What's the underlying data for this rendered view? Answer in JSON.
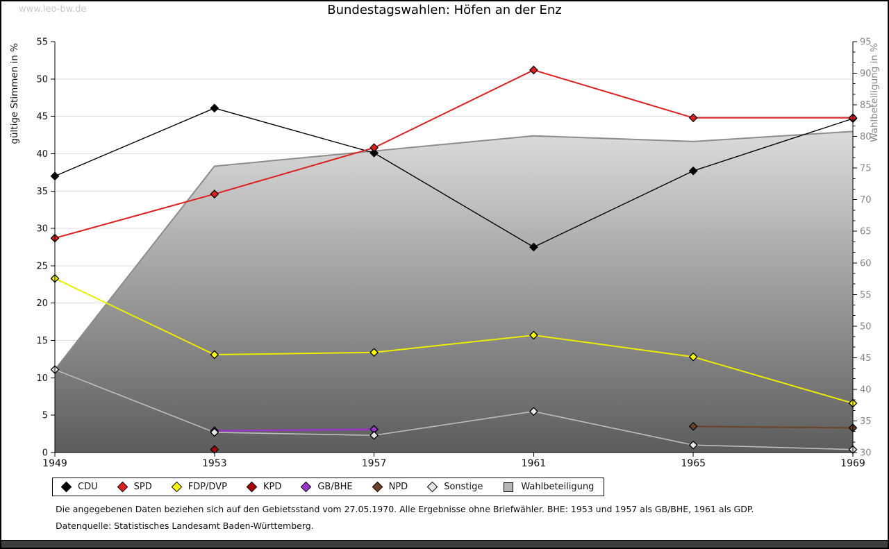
{
  "watermark": "www.leo-bw.de",
  "title": "Bundestagswahlen: Höfen an der Enz",
  "footnotes": {
    "line1": "Die angegebenen Daten beziehen sich auf den Gebietsstand vom 27.05.1970. Alle Ergebnisse ohne Briefwähler. BHE: 1953 und 1957 als GB/BHE, 1961 als GDP.",
    "line2": "Datenquelle: Statistisches Landesamt Baden-Württemberg."
  },
  "chart_data": {
    "type": "line",
    "title": "Bundestagswahlen: Höfen an der Enz",
    "x": [
      1949,
      1953,
      1957,
      1961,
      1965,
      1969
    ],
    "left_axis": {
      "title": "gültige Stimmen in %",
      "min": 0,
      "max": 55,
      "step": 5
    },
    "right_axis": {
      "title": "Wahlbeteiligung in %",
      "min": 30,
      "max": 95,
      "step": 5
    },
    "grid": true,
    "legend_position": "bottom",
    "series": [
      {
        "name": "CDU",
        "color": "#000000",
        "marker": "#000000",
        "width": 1.4,
        "values": [
          37.0,
          46.1,
          40.1,
          27.5,
          37.7,
          44.7
        ]
      },
      {
        "name": "SPD",
        "color": "#dd2020",
        "marker": "#dd2020",
        "width": 2.0,
        "values": [
          28.7,
          34.6,
          40.8,
          51.2,
          44.8,
          44.8
        ]
      },
      {
        "name": "FDP/DVP",
        "color": "#eded00",
        "marker": "#ffff00",
        "width": 2.0,
        "values": [
          23.3,
          13.1,
          13.4,
          15.7,
          12.8,
          6.6
        ]
      },
      {
        "name": "KPD",
        "color": "#aa0000",
        "marker": "#aa0000",
        "width": 2.0,
        "values": [
          null,
          0.4,
          null,
          null,
          null,
          null
        ]
      },
      {
        "name": "GB/BHE",
        "color": "#9933cc",
        "marker": "#9933cc",
        "width": 2.4,
        "values": [
          null,
          2.9,
          3.1,
          null,
          null,
          null
        ]
      },
      {
        "name": "NPD",
        "color": "#6b4226",
        "marker": "#6b4226",
        "width": 2.0,
        "values": [
          null,
          null,
          null,
          null,
          3.5,
          3.3
        ]
      },
      {
        "name": "Sonstige",
        "color": "#bdbdbd",
        "marker": "#e8e8e8",
        "width": 1.6,
        "values": [
          11.1,
          2.7,
          2.3,
          5.5,
          1.0,
          0.4
        ]
      }
    ],
    "area_series": {
      "name": "Wahlbeteiligung",
      "axis": "right",
      "values": [
        43.1,
        75.3,
        77.7,
        80.1,
        79.2,
        80.8
      ],
      "border_color": "#8c8c8c",
      "fill_top": "#ffffff",
      "fill_bottom": "#5c5c5c"
    },
    "colors": {
      "gridline": "#dcdcdc",
      "axis": "#000000",
      "right_axis_text": "#858585",
      "left_axis_text": "#111111"
    }
  },
  "legend": {
    "items": [
      {
        "label": "CDU",
        "color": "#000000",
        "shape": "diamond"
      },
      {
        "label": "SPD",
        "color": "#dd2020",
        "shape": "diamond"
      },
      {
        "label": "FDP/DVP",
        "color": "#ffff00",
        "shape": "diamond"
      },
      {
        "label": "KPD",
        "color": "#aa0000",
        "shape": "diamond"
      },
      {
        "label": "GB/BHE",
        "color": "#9933cc",
        "shape": "diamond"
      },
      {
        "label": "NPD",
        "color": "#6b4226",
        "shape": "diamond"
      },
      {
        "label": "Sonstige",
        "color": "#e8e8e8",
        "shape": "diamond"
      },
      {
        "label": "Wahlbeteiligung",
        "color": "#b5b5b5",
        "shape": "square"
      }
    ]
  }
}
